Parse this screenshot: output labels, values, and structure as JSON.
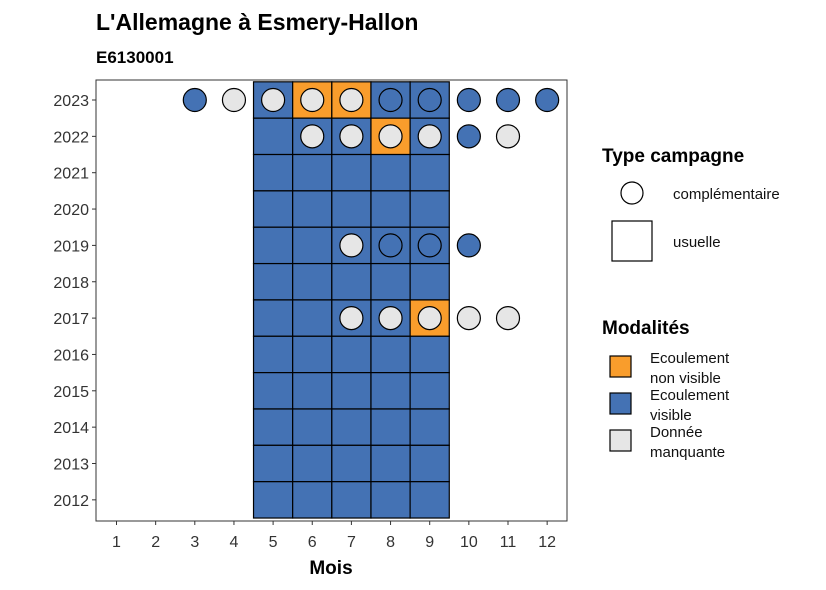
{
  "chart_data": {
    "type": "heatmap",
    "title": "L'Allemagne à Esmery-Hallon",
    "subtitle": "E6130001",
    "xlabel": "Mois",
    "ylabel": "",
    "x": [
      1,
      2,
      3,
      4,
      5,
      6,
      7,
      8,
      9,
      10,
      11,
      12
    ],
    "y": [
      2012,
      2013,
      2014,
      2015,
      2016,
      2017,
      2018,
      2019,
      2020,
      2021,
      2022,
      2023
    ],
    "y_tick_labels": [
      "2023",
      "2022",
      "2021",
      "2020",
      "2019",
      "2018",
      "2017",
      "2016",
      "2015",
      "2014",
      "2013",
      "2012"
    ],
    "x_tick_labels": [
      "1",
      "2",
      "3",
      "4",
      "5",
      "6",
      "7",
      "8",
      "9",
      "10",
      "11",
      "12"
    ],
    "colors": {
      "Ecoulement non visible": "#f99d2c",
      "Ecoulement visible": "#4472b4",
      "Donnée manquante": "#e6e6e6"
    },
    "legend": {
      "campagne_title": "Type campagne",
      "campagne_items": [
        {
          "shape": "circle",
          "label": "complémentaire"
        },
        {
          "shape": "square",
          "label": "usuelle"
        }
      ],
      "modalites_title": "Modalités",
      "modalites_items": [
        {
          "key": "Ecoulement non visible",
          "lines": [
            "Ecoulement",
            "non visible"
          ]
        },
        {
          "key": "Ecoulement visible",
          "lines": [
            "Ecoulement",
            "visible"
          ]
        },
        {
          "key": "Donnée manquante",
          "lines": [
            "Donnée",
            "manquante"
          ]
        }
      ],
      "placement": "right"
    },
    "usuelle": [
      {
        "year": 2023,
        "month": 5,
        "value": "Ecoulement visible"
      },
      {
        "year": 2023,
        "month": 6,
        "value": "Ecoulement non visible"
      },
      {
        "year": 2023,
        "month": 7,
        "value": "Ecoulement non visible"
      },
      {
        "year": 2023,
        "month": 8,
        "value": "Ecoulement visible"
      },
      {
        "year": 2023,
        "month": 9,
        "value": "Ecoulement visible"
      },
      {
        "year": 2022,
        "month": 5,
        "value": "Ecoulement visible"
      },
      {
        "year": 2022,
        "month": 6,
        "value": "Ecoulement visible"
      },
      {
        "year": 2022,
        "month": 7,
        "value": "Ecoulement visible"
      },
      {
        "year": 2022,
        "month": 8,
        "value": "Ecoulement non visible"
      },
      {
        "year": 2022,
        "month": 9,
        "value": "Ecoulement visible"
      },
      {
        "year": 2021,
        "month": 5,
        "value": "Ecoulement visible"
      },
      {
        "year": 2021,
        "month": 6,
        "value": "Ecoulement visible"
      },
      {
        "year": 2021,
        "month": 7,
        "value": "Ecoulement visible"
      },
      {
        "year": 2021,
        "month": 8,
        "value": "Ecoulement visible"
      },
      {
        "year": 2021,
        "month": 9,
        "value": "Ecoulement visible"
      },
      {
        "year": 2020,
        "month": 5,
        "value": "Ecoulement visible"
      },
      {
        "year": 2020,
        "month": 6,
        "value": "Ecoulement visible"
      },
      {
        "year": 2020,
        "month": 7,
        "value": "Ecoulement visible"
      },
      {
        "year": 2020,
        "month": 8,
        "value": "Ecoulement visible"
      },
      {
        "year": 2020,
        "month": 9,
        "value": "Ecoulement visible"
      },
      {
        "year": 2019,
        "month": 5,
        "value": "Ecoulement visible"
      },
      {
        "year": 2019,
        "month": 6,
        "value": "Ecoulement visible"
      },
      {
        "year": 2019,
        "month": 7,
        "value": "Ecoulement visible"
      },
      {
        "year": 2019,
        "month": 8,
        "value": "Ecoulement visible"
      },
      {
        "year": 2019,
        "month": 9,
        "value": "Ecoulement visible"
      },
      {
        "year": 2018,
        "month": 5,
        "value": "Ecoulement visible"
      },
      {
        "year": 2018,
        "month": 6,
        "value": "Ecoulement visible"
      },
      {
        "year": 2018,
        "month": 7,
        "value": "Ecoulement visible"
      },
      {
        "year": 2018,
        "month": 8,
        "value": "Ecoulement visible"
      },
      {
        "year": 2018,
        "month": 9,
        "value": "Ecoulement visible"
      },
      {
        "year": 2017,
        "month": 5,
        "value": "Ecoulement visible"
      },
      {
        "year": 2017,
        "month": 6,
        "value": "Ecoulement visible"
      },
      {
        "year": 2017,
        "month": 7,
        "value": "Ecoulement visible"
      },
      {
        "year": 2017,
        "month": 8,
        "value": "Ecoulement visible"
      },
      {
        "year": 2017,
        "month": 9,
        "value": "Ecoulement non visible"
      },
      {
        "year": 2016,
        "month": 5,
        "value": "Ecoulement visible"
      },
      {
        "year": 2016,
        "month": 6,
        "value": "Ecoulement visible"
      },
      {
        "year": 2016,
        "month": 7,
        "value": "Ecoulement visible"
      },
      {
        "year": 2016,
        "month": 8,
        "value": "Ecoulement visible"
      },
      {
        "year": 2016,
        "month": 9,
        "value": "Ecoulement visible"
      },
      {
        "year": 2015,
        "month": 5,
        "value": "Ecoulement visible"
      },
      {
        "year": 2015,
        "month": 6,
        "value": "Ecoulement visible"
      },
      {
        "year": 2015,
        "month": 7,
        "value": "Ecoulement visible"
      },
      {
        "year": 2015,
        "month": 8,
        "value": "Ecoulement visible"
      },
      {
        "year": 2015,
        "month": 9,
        "value": "Ecoulement visible"
      },
      {
        "year": 2014,
        "month": 5,
        "value": "Ecoulement visible"
      },
      {
        "year": 2014,
        "month": 6,
        "value": "Ecoulement visible"
      },
      {
        "year": 2014,
        "month": 7,
        "value": "Ecoulement visible"
      },
      {
        "year": 2014,
        "month": 8,
        "value": "Ecoulement visible"
      },
      {
        "year": 2014,
        "month": 9,
        "value": "Ecoulement visible"
      },
      {
        "year": 2013,
        "month": 5,
        "value": "Ecoulement visible"
      },
      {
        "year": 2013,
        "month": 6,
        "value": "Ecoulement visible"
      },
      {
        "year": 2013,
        "month": 7,
        "value": "Ecoulement visible"
      },
      {
        "year": 2013,
        "month": 8,
        "value": "Ecoulement visible"
      },
      {
        "year": 2013,
        "month": 9,
        "value": "Ecoulement visible"
      },
      {
        "year": 2012,
        "month": 5,
        "value": "Ecoulement visible"
      },
      {
        "year": 2012,
        "month": 6,
        "value": "Ecoulement visible"
      },
      {
        "year": 2012,
        "month": 7,
        "value": "Ecoulement visible"
      },
      {
        "year": 2012,
        "month": 8,
        "value": "Ecoulement visible"
      },
      {
        "year": 2012,
        "month": 9,
        "value": "Ecoulement visible"
      }
    ],
    "complementaire": [
      {
        "year": 2023,
        "month": 3,
        "value": "Ecoulement visible"
      },
      {
        "year": 2023,
        "month": 4,
        "value": "Donnée manquante"
      },
      {
        "year": 2023,
        "month": 5,
        "value": "Donnée manquante"
      },
      {
        "year": 2023,
        "month": 6,
        "value": "Donnée manquante"
      },
      {
        "year": 2023,
        "month": 7,
        "value": "Donnée manquante"
      },
      {
        "year": 2023,
        "month": 8,
        "value": "Ecoulement visible"
      },
      {
        "year": 2023,
        "month": 9,
        "value": "Ecoulement visible"
      },
      {
        "year": 2023,
        "month": 10,
        "value": "Ecoulement visible"
      },
      {
        "year": 2023,
        "month": 11,
        "value": "Ecoulement visible"
      },
      {
        "year": 2023,
        "month": 12,
        "value": "Ecoulement visible"
      },
      {
        "year": 2022,
        "month": 6,
        "value": "Donnée manquante"
      },
      {
        "year": 2022,
        "month": 7,
        "value": "Donnée manquante"
      },
      {
        "year": 2022,
        "month": 8,
        "value": "Donnée manquante"
      },
      {
        "year": 2022,
        "month": 9,
        "value": "Donnée manquante"
      },
      {
        "year": 2022,
        "month": 10,
        "value": "Ecoulement visible"
      },
      {
        "year": 2022,
        "month": 11,
        "value": "Donnée manquante"
      },
      {
        "year": 2019,
        "month": 7,
        "value": "Donnée manquante"
      },
      {
        "year": 2019,
        "month": 8,
        "value": "Ecoulement visible"
      },
      {
        "year": 2019,
        "month": 9,
        "value": "Ecoulement visible"
      },
      {
        "year": 2019,
        "month": 10,
        "value": "Ecoulement visible"
      },
      {
        "year": 2017,
        "month": 7,
        "value": "Donnée manquante"
      },
      {
        "year": 2017,
        "month": 8,
        "value": "Donnée manquante"
      },
      {
        "year": 2017,
        "month": 9,
        "value": "Donnée manquante"
      },
      {
        "year": 2017,
        "month": 10,
        "value": "Donnée manquante"
      },
      {
        "year": 2017,
        "month": 11,
        "value": "Donnée manquante"
      }
    ]
  }
}
